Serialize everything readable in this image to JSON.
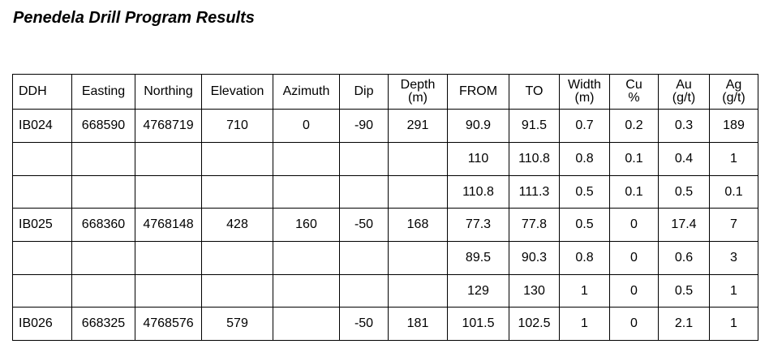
{
  "title": "Penedela Drill Program Results",
  "table": {
    "headers": [
      {
        "line1": "DDH",
        "line2": ""
      },
      {
        "line1": "Easting",
        "line2": ""
      },
      {
        "line1": "Northing",
        "line2": ""
      },
      {
        "line1": "Elevation",
        "line2": ""
      },
      {
        "line1": "Azimuth",
        "line2": ""
      },
      {
        "line1": "Dip",
        "line2": ""
      },
      {
        "line1": "Depth",
        "line2": "(m)"
      },
      {
        "line1": "FROM",
        "line2": ""
      },
      {
        "line1": "TO",
        "line2": ""
      },
      {
        "line1": "Width",
        "line2": "(m)"
      },
      {
        "line1": "Cu",
        "line2": "%"
      },
      {
        "line1": "Au",
        "line2": "(g/t)"
      },
      {
        "line1": "Ag",
        "line2": "(g/t)"
      }
    ],
    "rows": [
      [
        "IB024",
        "668590",
        "4768719",
        "710",
        "0",
        "-90",
        "291",
        "90.9",
        "91.5",
        "0.7",
        "0.2",
        "0.3",
        "189"
      ],
      [
        "",
        "",
        "",
        "",
        "",
        "",
        "",
        "110",
        "110.8",
        "0.8",
        "0.1",
        "0.4",
        "1"
      ],
      [
        "",
        "",
        "",
        "",
        "",
        "",
        "",
        "110.8",
        "111.3",
        "0.5",
        "0.1",
        "0.5",
        "0.1"
      ],
      [
        "IB025",
        "668360",
        "4768148",
        "428",
        "160",
        "-50",
        "168",
        "77.3",
        "77.8",
        "0.5",
        "0",
        "17.4",
        "7"
      ],
      [
        "",
        "",
        "",
        "",
        "",
        "",
        "",
        "89.5",
        "90.3",
        "0.8",
        "0",
        "0.6",
        "3"
      ],
      [
        "",
        "",
        "",
        "",
        "",
        "",
        "",
        "129",
        "130",
        "1",
        "0",
        "0.5",
        "1"
      ],
      [
        "IB026",
        "668325",
        "4768576",
        "579",
        "",
        "-50",
        "181",
        "101.5",
        "102.5",
        "1",
        "0",
        "2.1",
        "1"
      ]
    ]
  }
}
